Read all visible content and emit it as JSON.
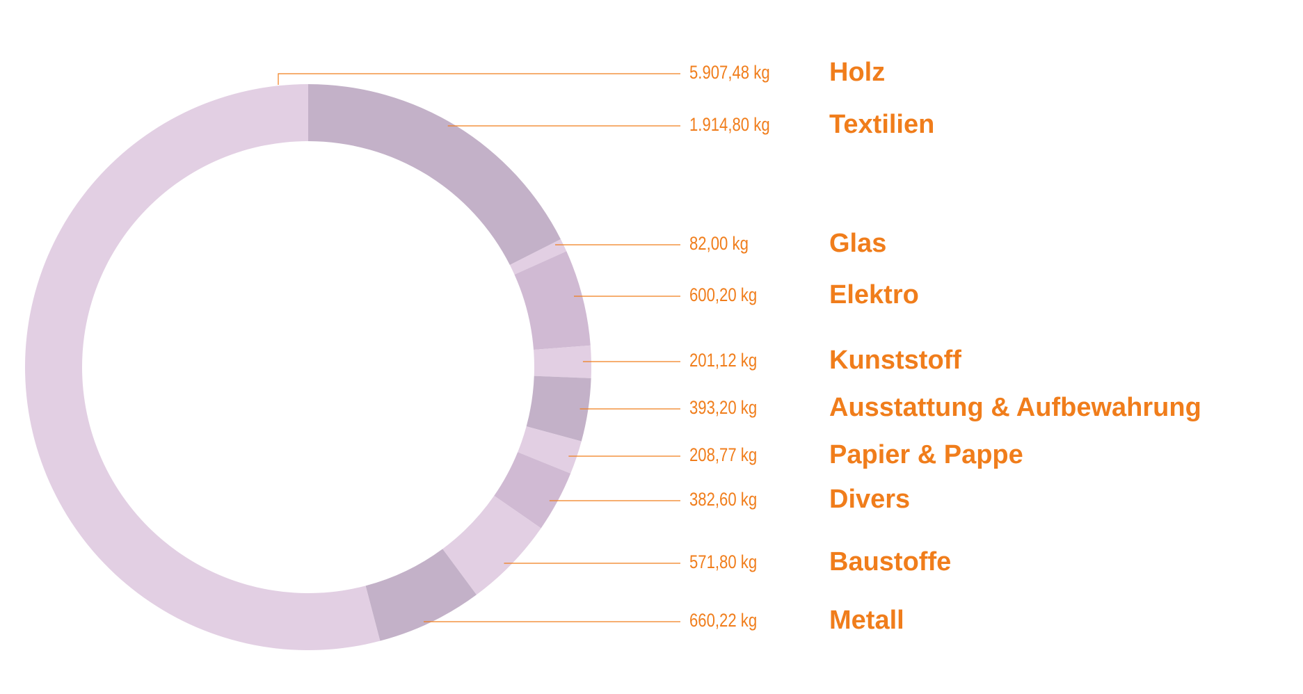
{
  "chart_data": {
    "type": "donut",
    "categories": [
      "Holz",
      "Textilien",
      "Glas",
      "Elektro",
      "Kunststoff",
      "Ausstattung & Aufbewahrung",
      "Papier & Pappe",
      "Divers",
      "Baustoffe",
      "Metall"
    ],
    "values": [
      5907.48,
      1914.8,
      82.0,
      600.2,
      201.12,
      393.2,
      208.77,
      382.6,
      571.8,
      660.22
    ],
    "value_labels": [
      "5.907,48 kg",
      "1.914,80 kg",
      "82,00 kg",
      "600,20 kg",
      "201,12 kg",
      "393,20 kg",
      "208,77 kg",
      "382,60 kg",
      "571,80 kg",
      "660,22 kg"
    ],
    "colors": [
      "#e2cfe3",
      "#c3b1c8",
      "#e2cfe3",
      "#d0bad3",
      "#e2cfe3",
      "#c3b1c8",
      "#e2cfe3",
      "#d0bad3",
      "#e2cfe3",
      "#c3b1c8"
    ],
    "label_color": "#f07d1b"
  }
}
